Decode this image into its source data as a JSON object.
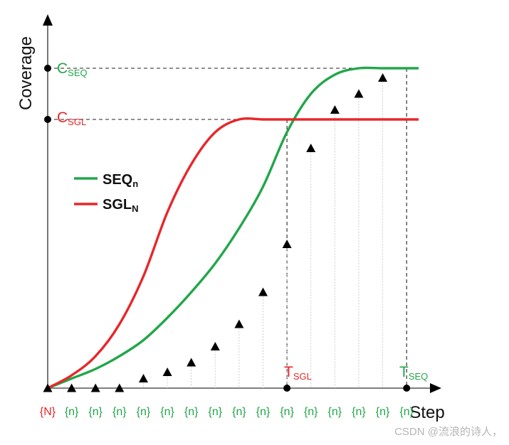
{
  "chart_data": {
    "type": "line",
    "title": "",
    "xlabel": "Step",
    "ylabel": "Coverage",
    "xlim": [
      0,
      15.5
    ],
    "ylim": [
      0,
      1.08
    ],
    "grid": false,
    "legend": "middle-left",
    "x_tick_labels": [
      {
        "text": "{N}",
        "color": "#e8262a"
      },
      {
        "text": "{n}",
        "color": "#22a64a"
      },
      {
        "text": "{n}",
        "color": "#22a64a"
      },
      {
        "text": "{n}",
        "color": "#22a64a"
      },
      {
        "text": "{n}",
        "color": "#22a64a"
      },
      {
        "text": "{n}",
        "color": "#22a64a"
      },
      {
        "text": "{n}",
        "color": "#22a64a"
      },
      {
        "text": "{n}",
        "color": "#22a64a"
      },
      {
        "text": "{n}",
        "color": "#22a64a"
      },
      {
        "text": "{n}",
        "color": "#22a64a"
      },
      {
        "text": "{n}",
        "color": "#22a64a"
      },
      {
        "text": "{n}",
        "color": "#22a64a"
      },
      {
        "text": "{n}",
        "color": "#22a64a"
      },
      {
        "text": "{n}",
        "color": "#22a64a"
      },
      {
        "text": "{n}",
        "color": "#22a64a"
      },
      {
        "text": "{n}",
        "color": "#22a64a"
      }
    ],
    "series": [
      {
        "name": "SEQ",
        "subscript": "n",
        "color": "#22a64a",
        "x": [
          0,
          1,
          2,
          3,
          4,
          5,
          6,
          7,
          8,
          9,
          10,
          11,
          12,
          13,
          14,
          15,
          15.5
        ],
        "values": [
          0,
          0.03,
          0.06,
          0.1,
          0.15,
          0.22,
          0.3,
          0.39,
          0.5,
          0.63,
          0.8,
          0.92,
          0.98,
          1.0,
          1.0,
          1.0,
          1.0
        ]
      },
      {
        "name": "SGL",
        "subscript": "N",
        "color": "#e8262a",
        "x": [
          0,
          1,
          2,
          3,
          4,
          5,
          6,
          7,
          8,
          9,
          10,
          11,
          12,
          13,
          14,
          15,
          15.5
        ],
        "values": [
          0,
          0.04,
          0.1,
          0.2,
          0.35,
          0.55,
          0.7,
          0.8,
          0.84,
          0.84,
          0.84,
          0.84,
          0.84,
          0.84,
          0.84,
          0.84,
          0.84
        ]
      }
    ],
    "markers": {
      "name": "steps",
      "x": [
        0,
        1,
        2,
        3,
        4,
        5,
        6,
        7,
        8,
        9,
        10,
        11,
        12,
        13,
        14
      ],
      "values": [
        0,
        0,
        0,
        0,
        0.03,
        0.05,
        0.08,
        0.13,
        0.2,
        0.3,
        0.45,
        0.75,
        0.87,
        0.92,
        0.97
      ]
    },
    "reference_lines": [
      {
        "label": "C",
        "subscript": "SEQ",
        "axis": "y",
        "value": 1.0,
        "color": "#22a64a"
      },
      {
        "label": "C",
        "subscript": "SGL",
        "axis": "y",
        "value": 0.84,
        "color": "#e8262a"
      },
      {
        "label": "T",
        "subscript": "SGL",
        "axis": "x",
        "value": 10,
        "color": "#e8262a"
      },
      {
        "label": "T",
        "subscript": "SEQ",
        "axis": "x",
        "value": 15,
        "color": "#22a64a"
      }
    ]
  },
  "watermark": "CSDN @流浪的诗人，"
}
